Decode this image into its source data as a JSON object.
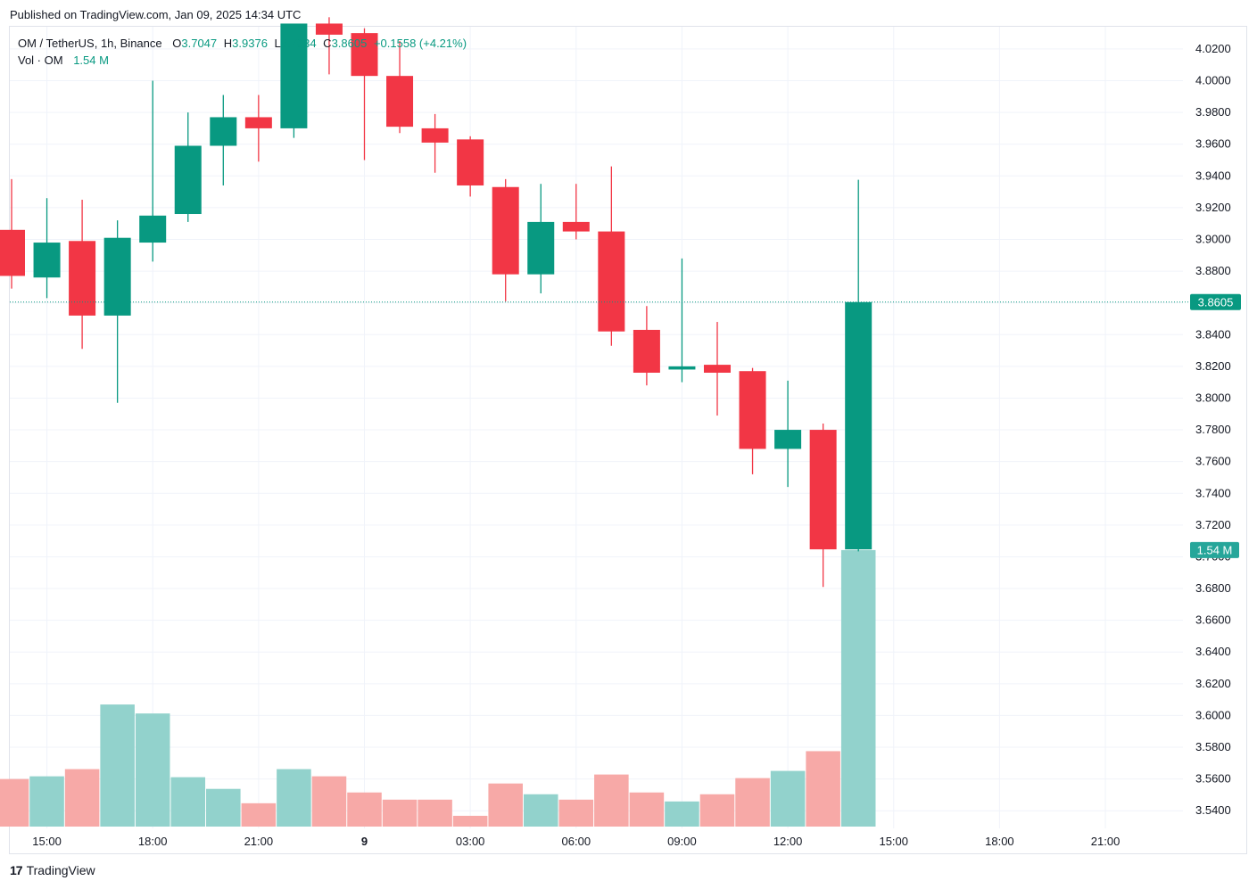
{
  "published": "Published on TradingView.com, Jan 09, 2025 14:34 UTC",
  "legend": {
    "symbol": "OM / TetherUS, 1h, Binance",
    "o_label": "O",
    "o_value": "3.7047",
    "h_label": "H",
    "h_value": "3.9376",
    "l_label": "L",
    "l_value": "3.7034",
    "c_label": "C",
    "c_value": "3.8605",
    "change": "+0.1558 (+4.21%)",
    "vol_label": "Vol · OM",
    "vol_value": "1.54 M"
  },
  "brand": {
    "mark": "17",
    "name": "TradingView"
  },
  "colors": {
    "up": "#089981",
    "down": "#f23645",
    "vol_up": "#92d2cc",
    "vol_down": "#f7a9a7"
  },
  "chart_data": {
    "type": "candlestick",
    "interval": "1h",
    "ylim": [
      3.53,
      4.034
    ],
    "y_ticks": [
      "4.0200",
      "4.0000",
      "3.9800",
      "3.9600",
      "3.9400",
      "3.9200",
      "3.9000",
      "3.8800",
      "3.8600",
      "3.8400",
      "3.8200",
      "3.8000",
      "3.7800",
      "3.7600",
      "3.7400",
      "3.7200",
      "3.7000",
      "3.6800",
      "3.6600",
      "3.6400",
      "3.6200",
      "3.6000",
      "3.5800",
      "3.5600",
      "3.5400"
    ],
    "x_ticks": [
      {
        "label": "15:00",
        "index": 1
      },
      {
        "label": "18:00",
        "index": 4
      },
      {
        "label": "21:00",
        "index": 7
      },
      {
        "label": "9",
        "index": 10,
        "bold": true
      },
      {
        "label": "03:00",
        "index": 13
      },
      {
        "label": "06:00",
        "index": 16
      },
      {
        "label": "09:00",
        "index": 19
      },
      {
        "label": "12:00",
        "index": 22
      },
      {
        "label": "15:00",
        "index": 25
      },
      {
        "label": "18:00",
        "index": 28
      },
      {
        "label": "21:00",
        "index": 31
      }
    ],
    "last_price": {
      "label": "3.8605",
      "value": 3.8605
    },
    "last_volume": {
      "label": "1.54 M"
    },
    "candles": [
      {
        "o": 3.906,
        "h": 3.938,
        "l": 3.869,
        "c": 3.877
      },
      {
        "o": 3.876,
        "h": 3.926,
        "l": 3.863,
        "c": 3.898
      },
      {
        "o": 3.899,
        "h": 3.925,
        "l": 3.831,
        "c": 3.852
      },
      {
        "o": 3.852,
        "h": 3.912,
        "l": 3.797,
        "c": 3.901
      },
      {
        "o": 3.898,
        "h": 4.0,
        "l": 3.886,
        "c": 3.915
      },
      {
        "o": 3.916,
        "h": 3.98,
        "l": 3.911,
        "c": 3.959
      },
      {
        "o": 3.959,
        "h": 3.991,
        "l": 3.934,
        "c": 3.977
      },
      {
        "o": 3.977,
        "h": 3.991,
        "l": 3.949,
        "c": 3.97
      },
      {
        "o": 3.97,
        "h": 4.036,
        "l": 3.964,
        "c": 4.036
      },
      {
        "o": 4.036,
        "h": 4.04,
        "l": 4.004,
        "c": 4.029
      },
      {
        "o": 4.03,
        "h": 4.033,
        "l": 3.95,
        "c": 4.003
      },
      {
        "o": 4.003,
        "h": 4.025,
        "l": 3.967,
        "c": 3.971
      },
      {
        "o": 3.97,
        "h": 3.979,
        "l": 3.942,
        "c": 3.961
      },
      {
        "o": 3.963,
        "h": 3.965,
        "l": 3.927,
        "c": 3.934
      },
      {
        "o": 3.933,
        "h": 3.938,
        "l": 3.861,
        "c": 3.878
      },
      {
        "o": 3.878,
        "h": 3.935,
        "l": 3.866,
        "c": 3.911
      },
      {
        "o": 3.911,
        "h": 3.935,
        "l": 3.9,
        "c": 3.905
      },
      {
        "o": 3.905,
        "h": 3.946,
        "l": 3.833,
        "c": 3.842
      },
      {
        "o": 3.843,
        "h": 3.858,
        "l": 3.808,
        "c": 3.816
      },
      {
        "o": 3.818,
        "h": 3.888,
        "l": 3.81,
        "c": 3.82
      },
      {
        "o": 3.821,
        "h": 3.848,
        "l": 3.789,
        "c": 3.816
      },
      {
        "o": 3.817,
        "h": 3.819,
        "l": 3.752,
        "c": 3.768
      },
      {
        "o": 3.768,
        "h": 3.811,
        "l": 3.744,
        "c": 3.78
      },
      {
        "o": 3.78,
        "h": 3.784,
        "l": 3.681,
        "c": 3.7047
      },
      {
        "o": 3.7047,
        "h": 3.9376,
        "l": 3.7034,
        "c": 3.8605
      }
    ],
    "volume": [
      0.265,
      0.28,
      0.32,
      0.68,
      0.63,
      0.275,
      0.21,
      0.13,
      0.32,
      0.28,
      0.19,
      0.15,
      0.15,
      0.06,
      0.24,
      0.18,
      0.15,
      0.29,
      0.19,
      0.14,
      0.18,
      0.27,
      0.31,
      0.42,
      1.54
    ],
    "volume_max": 2.2
  }
}
